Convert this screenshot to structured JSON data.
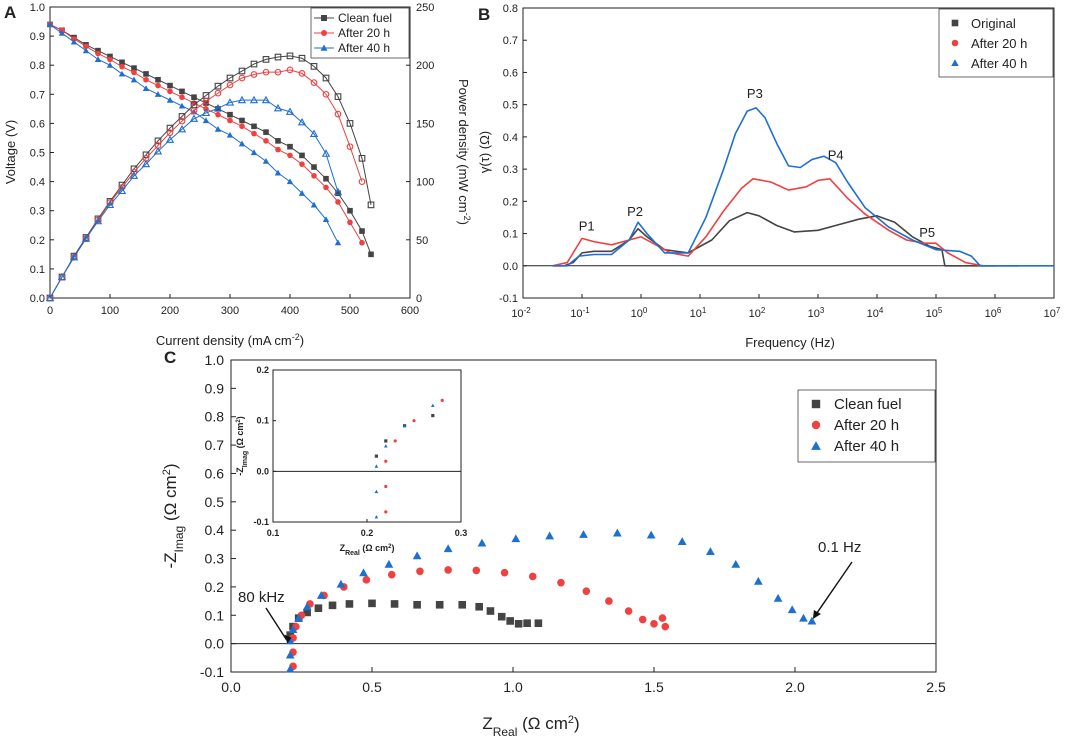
{
  "chart_data": [
    {
      "panel": "A",
      "type": "line",
      "title": "",
      "xlabel": "Current density (mA cm",
      "xlabel_sup": "-2",
      "xlabel_end": ")",
      "ylabel": "Voltage (V)",
      "y2label": "Power density (mW cm",
      "y2label_sup": "-2",
      "y2label_end": ")",
      "xlim": [
        0,
        600
      ],
      "ylim": [
        0,
        1.0
      ],
      "y2lim": [
        0,
        250
      ],
      "xticks": [
        0,
        100,
        200,
        300,
        400,
        500,
        600
      ],
      "yticks": [
        "0.0",
        "0.1",
        "0.2",
        "0.3",
        "0.4",
        "0.5",
        "0.6",
        "0.7",
        "0.8",
        "0.9",
        "1.0"
      ],
      "y2ticks": [
        0,
        50,
        100,
        150,
        200,
        250
      ],
      "legend": [
        "Clean fuel",
        "After 20 h",
        "After 40 h"
      ],
      "series": [
        {
          "name": "Clean fuel",
          "color": "#444444",
          "marker": "square",
          "axis": "voltage",
          "x": [
            0,
            20,
            40,
            60,
            80,
            100,
            120,
            140,
            160,
            180,
            200,
            220,
            240,
            260,
            280,
            300,
            320,
            340,
            360,
            380,
            400,
            420,
            440,
            460,
            480,
            500,
            520,
            535
          ],
          "y": [
            0.94,
            0.92,
            0.895,
            0.87,
            0.85,
            0.83,
            0.81,
            0.79,
            0.77,
            0.75,
            0.73,
            0.71,
            0.69,
            0.67,
            0.65,
            0.63,
            0.61,
            0.59,
            0.57,
            0.54,
            0.52,
            0.49,
            0.45,
            0.41,
            0.36,
            0.3,
            0.23,
            0.15
          ]
        },
        {
          "name": "After 20 h",
          "color": "#f04040",
          "marker": "circle",
          "axis": "voltage",
          "x": [
            0,
            20,
            40,
            60,
            80,
            100,
            120,
            140,
            160,
            180,
            200,
            220,
            240,
            260,
            280,
            300,
            320,
            340,
            360,
            380,
            400,
            420,
            440,
            460,
            480,
            500,
            520
          ],
          "y": [
            0.94,
            0.92,
            0.89,
            0.865,
            0.84,
            0.82,
            0.795,
            0.775,
            0.75,
            0.73,
            0.71,
            0.69,
            0.67,
            0.65,
            0.63,
            0.61,
            0.59,
            0.565,
            0.54,
            0.51,
            0.49,
            0.46,
            0.42,
            0.38,
            0.33,
            0.26,
            0.19
          ]
        },
        {
          "name": "After 40 h",
          "color": "#1f6fd0",
          "marker": "triangle",
          "axis": "voltage",
          "x": [
            0,
            20,
            40,
            60,
            80,
            100,
            120,
            140,
            160,
            180,
            200,
            220,
            240,
            260,
            280,
            300,
            320,
            340,
            360,
            380,
            400,
            420,
            440,
            460,
            480
          ],
          "y": [
            0.94,
            0.91,
            0.88,
            0.85,
            0.82,
            0.8,
            0.77,
            0.75,
            0.72,
            0.7,
            0.68,
            0.66,
            0.64,
            0.61,
            0.58,
            0.56,
            0.53,
            0.5,
            0.47,
            0.43,
            0.4,
            0.36,
            0.32,
            0.27,
            0.19
          ]
        },
        {
          "name": "Clean fuel power",
          "color": "#444444",
          "marker": "square-open",
          "axis": "power",
          "x": [
            0,
            20,
            40,
            60,
            80,
            100,
            120,
            140,
            160,
            180,
            200,
            220,
            240,
            260,
            280,
            300,
            320,
            340,
            360,
            380,
            400,
            420,
            440,
            460,
            480,
            500,
            520,
            535
          ],
          "y": [
            0,
            18,
            36,
            52,
            68,
            83,
            97,
            111,
            123,
            135,
            146,
            156,
            166,
            174,
            182,
            189,
            195,
            201,
            205,
            207,
            208,
            206,
            199,
            189,
            173,
            150,
            120,
            80
          ]
        },
        {
          "name": "After 20 h power",
          "color": "#f04040",
          "marker": "circle-open",
          "axis": "power",
          "x": [
            0,
            20,
            40,
            60,
            80,
            100,
            120,
            140,
            160,
            180,
            200,
            220,
            240,
            260,
            280,
            300,
            320,
            340,
            360,
            380,
            400,
            420,
            440,
            460,
            480,
            500,
            520
          ],
          "y": [
            0,
            18,
            35,
            51,
            67,
            82,
            95,
            108,
            120,
            131,
            142,
            152,
            161,
            169,
            176,
            183,
            189,
            192,
            194,
            194,
            196,
            193,
            185,
            175,
            158,
            130,
            100
          ]
        },
        {
          "name": "After 40 h power",
          "color": "#1f6fd0",
          "marker": "triangle-open",
          "axis": "power",
          "x": [
            0,
            20,
            40,
            60,
            80,
            100,
            120,
            140,
            160,
            180,
            200,
            220,
            240,
            260,
            280,
            300,
            320,
            340,
            360,
            380,
            400,
            420,
            440,
            460,
            480
          ],
          "y": [
            0,
            18,
            35,
            51,
            66,
            80,
            92,
            105,
            115,
            126,
            136,
            145,
            154,
            159,
            163,
            168,
            170,
            170,
            170,
            163,
            160,
            151,
            141,
            124,
            91
          ]
        }
      ]
    },
    {
      "panel": "B",
      "type": "line",
      "title": "",
      "xlabel": "Frequency (Hz)",
      "ylabel": "γ(τ) (Ω)",
      "xscale": "log",
      "xlim_exp": [
        -2,
        7
      ],
      "ylim": [
        -0.1,
        0.8
      ],
      "xtick_exps": [
        "-2",
        "-1",
        "0",
        "1",
        "2",
        "3",
        "4",
        "5",
        "6",
        "7"
      ],
      "yticks": [
        "-0.1",
        "0.0",
        "0.1",
        "0.2",
        "0.3",
        "0.4",
        "0.5",
        "0.6",
        "0.7",
        "0.8"
      ],
      "legend": [
        "Original",
        "After 20 h",
        "After 40 h"
      ],
      "annotations": [
        {
          "label": "P1",
          "logf": -0.92,
          "y": 0.11
        },
        {
          "label": "P2",
          "logf": -0.1,
          "y": 0.155
        },
        {
          "label": "P3",
          "logf": 1.93,
          "y": 0.52
        },
        {
          "label": "P4",
          "logf": 3.3,
          "y": 0.33
        },
        {
          "label": "P5",
          "logf": 4.85,
          "y": 0.09
        }
      ],
      "series": [
        {
          "name": "Original",
          "color": "#444444",
          "logf": [
            -1.5,
            -1.3,
            -1.15,
            -1.0,
            -0.8,
            -0.5,
            -0.2,
            -0.05,
            0.1,
            0.4,
            0.8,
            1.2,
            1.5,
            1.8,
            2.0,
            2.3,
            2.6,
            3.0,
            3.4,
            3.7,
            4.0,
            4.3,
            4.6,
            4.9,
            5.1,
            5.15,
            5.3,
            6.4
          ],
          "y": [
            0.0,
            0.0,
            0.01,
            0.04,
            0.045,
            0.045,
            0.08,
            0.115,
            0.09,
            0.05,
            0.04,
            0.08,
            0.14,
            0.165,
            0.155,
            0.125,
            0.105,
            0.11,
            0.13,
            0.145,
            0.155,
            0.135,
            0.09,
            0.06,
            0.05,
            0.0,
            0.0,
            0.0
          ]
        },
        {
          "name": "After 20 h",
          "color": "#f04040",
          "logf": [
            -1.5,
            -1.25,
            -1.0,
            -0.8,
            -0.5,
            -0.2,
            0.0,
            0.2,
            0.5,
            0.8,
            1.1,
            1.4,
            1.7,
            1.9,
            2.2,
            2.5,
            2.8,
            3.0,
            3.2,
            3.5,
            3.8,
            4.2,
            4.5,
            4.8,
            5.0,
            5.2,
            5.5,
            5.8,
            6.0
          ],
          "y": [
            0.0,
            0.01,
            0.085,
            0.075,
            0.065,
            0.08,
            0.09,
            0.07,
            0.04,
            0.03,
            0.09,
            0.17,
            0.24,
            0.27,
            0.26,
            0.235,
            0.245,
            0.265,
            0.27,
            0.21,
            0.16,
            0.11,
            0.08,
            0.07,
            0.07,
            0.04,
            0.01,
            0.0,
            0.0
          ]
        },
        {
          "name": "After 40 h",
          "color": "#1f6fd0",
          "logf": [
            -1.5,
            -1.25,
            -1.05,
            -0.8,
            -0.5,
            -0.2,
            -0.05,
            0.1,
            0.4,
            0.8,
            1.1,
            1.4,
            1.6,
            1.8,
            1.95,
            2.1,
            2.3,
            2.5,
            2.7,
            2.9,
            3.1,
            3.3,
            3.5,
            3.8,
            4.2,
            4.6,
            5.0,
            5.4,
            5.6,
            5.75,
            6.0,
            7.0
          ],
          "y": [
            0.0,
            0.0,
            0.03,
            0.035,
            0.035,
            0.08,
            0.135,
            0.1,
            0.04,
            0.04,
            0.15,
            0.3,
            0.41,
            0.48,
            0.49,
            0.46,
            0.38,
            0.31,
            0.305,
            0.33,
            0.34,
            0.32,
            0.26,
            0.18,
            0.12,
            0.08,
            0.05,
            0.045,
            0.03,
            0.0,
            0.0,
            0.0
          ]
        }
      ]
    },
    {
      "panel": "C",
      "type": "scatter",
      "title": "",
      "xlabel": "Z",
      "xlabel_sub": "Real",
      "xlabel_end": " (Ω cm",
      "xlabel_sup": "2",
      "xlabel_close": ")",
      "ylabel": "-Z",
      "ylabel_sub": "Imag",
      "ylabel_end": " (Ω cm",
      "ylabel_sup": "2",
      "ylabel_close": ")",
      "xlim": [
        0.0,
        2.5
      ],
      "ylim": [
        -0.1,
        1.0
      ],
      "xticks": [
        "0.0",
        "0.5",
        "1.0",
        "1.5",
        "2.0",
        "2.5"
      ],
      "yticks": [
        "-0.1",
        "0.0",
        "0.1",
        "0.2",
        "0.3",
        "0.4",
        "0.5",
        "0.6",
        "0.7",
        "0.8",
        "0.9",
        "1.0"
      ],
      "legend": [
        "Clean fuel",
        "After 20 h",
        "After 40 h"
      ],
      "annotations": [
        {
          "label": "80 kHz",
          "x": 0.2,
          "y": 0.0
        },
        {
          "label": "0.1 Hz",
          "x": 2.06,
          "y": 0.08
        }
      ],
      "series": [
        {
          "name": "Clean fuel",
          "color": "#444444",
          "marker": "square",
          "x": [
            0.21,
            0.22,
            0.24,
            0.27,
            0.31,
            0.36,
            0.42,
            0.5,
            0.58,
            0.66,
            0.74,
            0.82,
            0.88,
            0.92,
            0.96,
            0.99,
            1.02,
            1.05,
            1.09
          ],
          "y": [
            0.03,
            0.06,
            0.09,
            0.11,
            0.125,
            0.135,
            0.14,
            0.142,
            0.14,
            0.137,
            0.137,
            0.137,
            0.13,
            0.115,
            0.095,
            0.08,
            0.07,
            0.072,
            0.072
          ]
        },
        {
          "name": "After 20 h",
          "color": "#f04040",
          "marker": "circle",
          "x": [
            0.22,
            0.22,
            0.22,
            0.23,
            0.25,
            0.28,
            0.33,
            0.4,
            0.48,
            0.57,
            0.67,
            0.77,
            0.87,
            0.97,
            1.07,
            1.17,
            1.26,
            1.34,
            1.41,
            1.46,
            1.5,
            1.53,
            1.54
          ],
          "y": [
            -0.08,
            -0.03,
            0.02,
            0.06,
            0.1,
            0.14,
            0.17,
            0.2,
            0.225,
            0.243,
            0.255,
            0.26,
            0.258,
            0.25,
            0.237,
            0.215,
            0.185,
            0.15,
            0.115,
            0.085,
            0.07,
            0.09,
            0.06
          ]
        },
        {
          "name": "After 40 h",
          "color": "#1f6fd0",
          "marker": "triangle",
          "x": [
            0.21,
            0.21,
            0.21,
            0.22,
            0.24,
            0.27,
            0.32,
            0.39,
            0.47,
            0.56,
            0.66,
            0.77,
            0.89,
            1.01,
            1.13,
            1.25,
            1.37,
            1.49,
            1.6,
            1.7,
            1.79,
            1.87,
            1.94,
            1.99,
            2.03,
            2.06
          ],
          "y": [
            -0.09,
            -0.04,
            0.01,
            0.05,
            0.09,
            0.13,
            0.17,
            0.21,
            0.25,
            0.28,
            0.31,
            0.335,
            0.355,
            0.37,
            0.38,
            0.385,
            0.39,
            0.383,
            0.36,
            0.325,
            0.28,
            0.22,
            0.16,
            0.12,
            0.09,
            0.08
          ]
        }
      ],
      "inset": {
        "xlabel": "Z",
        "xlabel_sub": "Real",
        "xlabel_end": " (Ω cm",
        "xlabel_sup": "2",
        "xlabel_close": ")",
        "ylabel": "-Z",
        "ylabel_sub": "Imag",
        "ylabel_end": " (Ω cm",
        "ylabel_sup": "2",
        "ylabel_close": ")",
        "xlim": [
          0.1,
          0.3
        ],
        "ylim": [
          -0.1,
          0.2
        ],
        "xticks": [
          "0.1",
          "0.2",
          "0.3"
        ],
        "yticks": [
          "-0.1",
          "0.0",
          "0.1",
          "0.2"
        ]
      }
    }
  ],
  "panel_labels": {
    "a": "A",
    "b": "B",
    "c": "C"
  }
}
